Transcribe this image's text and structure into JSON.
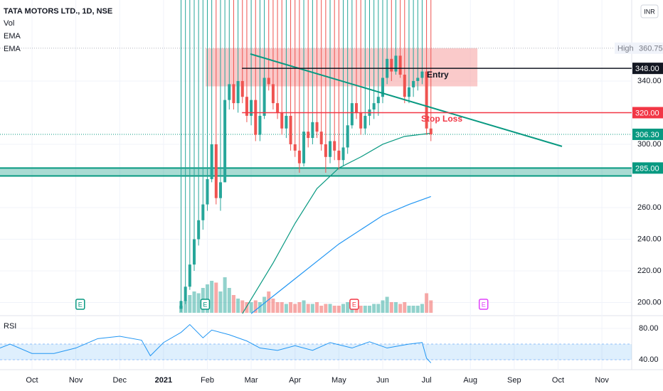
{
  "chart_data": {
    "type": "candlestick",
    "title": "TATA MOTORS LTD., 1D, NSE",
    "indicators": [
      "Vol",
      "EMA",
      "EMA"
    ],
    "currency": "INR",
    "up_color": "#26a69a",
    "down_color": "#ef5350",
    "xlim": [
      -0.73,
      13.68
    ],
    "xticks": [
      {
        "value": 0,
        "label": "Oct"
      },
      {
        "value": 1,
        "label": "Nov"
      },
      {
        "value": 2,
        "label": "Dec"
      },
      {
        "value": 3,
        "label": "2021"
      },
      {
        "value": 4,
        "label": "Feb"
      },
      {
        "value": 5,
        "label": "Mar"
      },
      {
        "value": 6,
        "label": "Apr"
      },
      {
        "value": 7,
        "label": "May"
      },
      {
        "value": 8,
        "label": "Jun"
      },
      {
        "value": 9,
        "label": "Jul"
      },
      {
        "value": 10,
        "label": "Aug"
      },
      {
        "value": 11,
        "label": "Sep"
      },
      {
        "value": 12,
        "label": "Oct"
      },
      {
        "value": 13,
        "label": "Nov"
      }
    ],
    "ylim": [
      193.5,
      391.2
    ],
    "yticks": [
      {
        "value": 200,
        "label": "200.00"
      },
      {
        "value": 220,
        "label": "220.00"
      },
      {
        "value": 240,
        "label": "240.00"
      },
      {
        "value": 260,
        "label": "260.00"
      },
      {
        "value": 300,
        "label": "300.00"
      },
      {
        "value": 340,
        "label": "340.00"
      }
    ],
    "x": [
      3.4,
      3.5,
      3.6,
      3.7,
      3.8,
      3.9,
      4.0,
      4.1,
      4.2,
      4.3,
      4.4,
      4.5,
      4.6,
      4.7,
      4.8,
      4.9,
      5.0,
      5.1,
      5.2,
      5.3,
      5.4,
      5.5,
      5.6,
      5.7,
      5.8,
      5.9,
      6.0,
      6.1,
      6.2,
      6.3,
      6.4,
      6.5,
      6.6,
      6.7,
      6.8,
      6.9,
      7.0,
      7.1,
      7.2,
      7.3,
      7.4,
      7.5,
      7.6,
      7.7,
      7.8,
      7.9,
      8.0,
      8.1,
      8.2,
      8.3,
      8.4,
      8.5,
      8.6,
      8.7,
      8.8,
      8.9,
      9.0,
      9.1
    ],
    "open": [
      196,
      201,
      210,
      224,
      240,
      252,
      262,
      278,
      300,
      266,
      276,
      328,
      338,
      326,
      340,
      330,
      318,
      328,
      306,
      318,
      342,
      338,
      326,
      320,
      310,
      318,
      300,
      296,
      288,
      308,
      304,
      314,
      308,
      300,
      292,
      302,
      296,
      290,
      298,
      312,
      326,
      320,
      310,
      318,
      322,
      326,
      330,
      342,
      354,
      346,
      356,
      344,
      330,
      336,
      340,
      342,
      346,
      310
    ],
    "high": {
      "label": "High",
      "value": 360.75
    },
    "low": [
      194,
      199,
      208,
      220,
      236,
      246,
      258,
      276,
      262,
      258,
      276,
      322,
      322,
      320,
      326,
      314,
      312,
      302,
      302,
      316,
      334,
      322,
      316,
      306,
      304,
      296,
      292,
      282,
      286,
      298,
      300,
      304,
      296,
      282,
      288,
      290,
      284,
      286,
      294,
      310,
      316,
      306,
      306,
      312,
      316,
      318,
      326,
      338,
      340,
      344,
      342,
      326,
      326,
      330,
      334,
      338,
      306,
      302
    ],
    "close": [
      201,
      210,
      224,
      240,
      252,
      262,
      278,
      300,
      266,
      276,
      328,
      338,
      326,
      340,
      330,
      318,
      328,
      306,
      318,
      342,
      338,
      326,
      320,
      310,
      318,
      300,
      296,
      288,
      308,
      304,
      314,
      308,
      300,
      292,
      302,
      296,
      290,
      298,
      312,
      326,
      320,
      310,
      318,
      322,
      326,
      330,
      342,
      354,
      346,
      356,
      344,
      330,
      336,
      340,
      342,
      346,
      310,
      306.3
    ],
    "volume": [
      20,
      35,
      50,
      60,
      55,
      70,
      80,
      90,
      85,
      60,
      100,
      70,
      50,
      40,
      35,
      30,
      30,
      35,
      30,
      45,
      60,
      40,
      30,
      30,
      25,
      30,
      25,
      30,
      35,
      25,
      25,
      30,
      20,
      25,
      25,
      20,
      20,
      25,
      30,
      35,
      25,
      20,
      20,
      20,
      25,
      25,
      35,
      45,
      30,
      30,
      25,
      30,
      20,
      20,
      20,
      25,
      55,
      35
    ],
    "volume_ylim": [
      0,
      100
    ],
    "ema": [
      {
        "color": "#089981",
        "x": [
          4.8,
          5.5,
          6.0,
          6.5,
          7.0,
          7.5,
          8.0,
          8.5,
          9.1
        ],
        "values": [
          193,
          225,
          250,
          272,
          285,
          292,
          300,
          305,
          307
        ]
      },
      {
        "color": "#2196f3",
        "x": [
          5.0,
          6.0,
          7.0,
          8.0,
          8.6,
          9.1
        ],
        "values": [
          193,
          215,
          237,
          255,
          262,
          267
        ]
      }
    ],
    "rsi": {
      "name": "RSI",
      "color": "#2196f3",
      "ylim": [
        27.3,
        95.5
      ],
      "band": [
        40,
        60
      ],
      "yticks": [
        {
          "value": 80,
          "label": "80.00"
        },
        {
          "value": 40,
          "label": "40.00"
        }
      ],
      "x": [
        -0.73,
        -0.5,
        0,
        0.5,
        1,
        1.5,
        2,
        2.5,
        2.7,
        3,
        3.4,
        3.6,
        3.9,
        4.1,
        4.5,
        4.9,
        5.2,
        5.6,
        6,
        6.4,
        6.8,
        7.3,
        7.7,
        8.1,
        8.6,
        8.9,
        9.0,
        9.1
      ],
      "values": [
        55,
        60,
        48,
        48,
        55,
        67,
        70,
        65,
        45,
        62,
        75,
        85,
        68,
        78,
        72,
        64,
        55,
        52,
        58,
        52,
        62,
        55,
        63,
        55,
        60,
        62,
        42,
        36
      ]
    },
    "zone": {
      "color": "#f7a6a6",
      "x": [
        3.96,
        10.16
      ],
      "y": [
        336.6,
        360.75
      ]
    },
    "levels": [
      {
        "value": 348,
        "label": "348.00",
        "color": "#131722",
        "x": 4.79,
        "text": "Entry"
      },
      {
        "value": 320,
        "label": "320.00",
        "color": "#f23645",
        "x": 4.79,
        "text": "Stop Loss"
      }
    ],
    "trendline": {
      "color": "#089981",
      "x": [
        4.98,
        12.09
      ],
      "y": [
        357.1,
        298.7
      ]
    },
    "support": {
      "color": "#089981",
      "values": [
        285,
        280
      ],
      "label": "285.00"
    },
    "last": {
      "value": 306.3,
      "label": "306.30",
      "color": "#089981"
    },
    "earnings": {
      "label": "E",
      "x": [
        1.1,
        3.95,
        7.35,
        10.3
      ],
      "colors": [
        "#089981",
        "#089981",
        "#f23645",
        "#e040fb"
      ]
    }
  }
}
